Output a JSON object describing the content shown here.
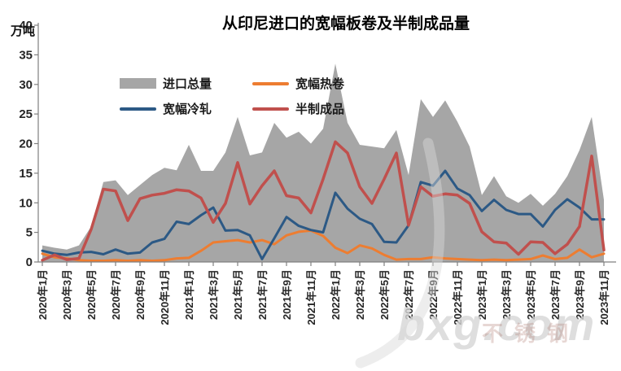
{
  "watermark": {
    "text": "bxg.com",
    "cjk": "不锈钢"
  },
  "chart_data": {
    "type": "area+line",
    "title": "从印尼进口的宽幅板卷及半制成品量",
    "y_unit": "万吨",
    "xlabel": "",
    "ylabel": "万吨",
    "ylim": [
      0,
      40
    ],
    "ytick_step": 5,
    "grid": false,
    "legend_position": "top-center",
    "xtick_label_every": 2,
    "x": [
      "2020年1月",
      "2020年2月",
      "2020年3月",
      "2020年4月",
      "2020年5月",
      "2020年6月",
      "2020年7月",
      "2020年8月",
      "2020年9月",
      "2020年10月",
      "2020年11月",
      "2020年12月",
      "2021年1月",
      "2021年2月",
      "2021年3月",
      "2021年4月",
      "2021年5月",
      "2021年6月",
      "2021年7月",
      "2021年8月",
      "2021年9月",
      "2021年10月",
      "2021年11月",
      "2021年12月",
      "2022年1月",
      "2022年2月",
      "2022年3月",
      "2022年4月",
      "2022年5月",
      "2022年6月",
      "2022年7月",
      "2022年8月",
      "2022年9月",
      "2022年10月",
      "2022年11月",
      "2022年12月",
      "2023年1月",
      "2023年2月",
      "2023年3月",
      "2023年4月",
      "2023年5月",
      "2023年6月",
      "2023年7月",
      "2023年8月",
      "2023年9月",
      "2023年10月",
      "2023年11月"
    ],
    "series": [
      {
        "name": "进口总量",
        "type": "area",
        "color": "#A6A6A6",
        "values": [
          2.8,
          2.4,
          2.1,
          2.8,
          6.0,
          13.5,
          13.8,
          11.3,
          13.0,
          14.7,
          15.9,
          15.5,
          19.8,
          15.4,
          15.4,
          18.5,
          24.5,
          18.0,
          18.5,
          23.5,
          21.0,
          22.0,
          20.0,
          22.5,
          33.5,
          23.5,
          19.8,
          19.5,
          19.2,
          22.3,
          14.7,
          27.5,
          24.5,
          27.3,
          23.7,
          19.5,
          11.3,
          14.5,
          11.1,
          10.0,
          11.5,
          9.5,
          11.5,
          14.5,
          18.9,
          24.5,
          10.5
        ]
      },
      {
        "name": "宽幅热卷",
        "type": "line",
        "color": "#ED7D31",
        "values": [
          1.4,
          0.8,
          0.6,
          0.3,
          0.2,
          0.2,
          0.3,
          0.2,
          0.3,
          0.2,
          0.3,
          0.6,
          0.7,
          1.9,
          3.3,
          3.5,
          3.7,
          3.3,
          3.7,
          3.0,
          4.5,
          5.1,
          5.3,
          4.4,
          2.4,
          1.5,
          2.8,
          2.3,
          1.2,
          0.4,
          0.5,
          0.5,
          0.8,
          0.6,
          0.5,
          0.4,
          0.3,
          0.4,
          0.3,
          0.4,
          0.5,
          1.1,
          0.5,
          0.7,
          2.1,
          0.8,
          1.4
        ]
      },
      {
        "name": "宽幅冷轧",
        "type": "line",
        "color": "#2C5985",
        "values": [
          1.9,
          1.4,
          1.2,
          1.6,
          1.7,
          1.3,
          2.1,
          1.4,
          1.6,
          3.3,
          3.9,
          6.8,
          6.4,
          7.9,
          9.2,
          5.3,
          5.4,
          4.5,
          0.5,
          4.0,
          7.6,
          6.1,
          5.4,
          5.0,
          11.7,
          9.0,
          7.3,
          6.4,
          3.4,
          3.3,
          6.2,
          13.5,
          12.9,
          15.4,
          12.4,
          11.3,
          8.6,
          10.5,
          8.8,
          8.1,
          8.1,
          6.0,
          8.8,
          10.6,
          9.2,
          7.2,
          7.2
        ]
      },
      {
        "name": "半制成品",
        "type": "line",
        "color": "#C0504D",
        "values": [
          0.3,
          1.2,
          0.4,
          0.6,
          5.5,
          12.3,
          12.0,
          7.0,
          10.7,
          11.3,
          11.6,
          12.2,
          12.0,
          10.8,
          6.7,
          9.9,
          16.8,
          9.8,
          12.9,
          15.4,
          11.2,
          10.8,
          8.3,
          14.0,
          20.3,
          18.4,
          12.7,
          9.9,
          14.0,
          18.4,
          6.2,
          12.7,
          11.1,
          11.5,
          11.3,
          9.9,
          5.1,
          3.4,
          3.2,
          1.3,
          3.4,
          3.3,
          1.4,
          3.0,
          6.0,
          17.9,
          2.0
        ]
      }
    ]
  }
}
